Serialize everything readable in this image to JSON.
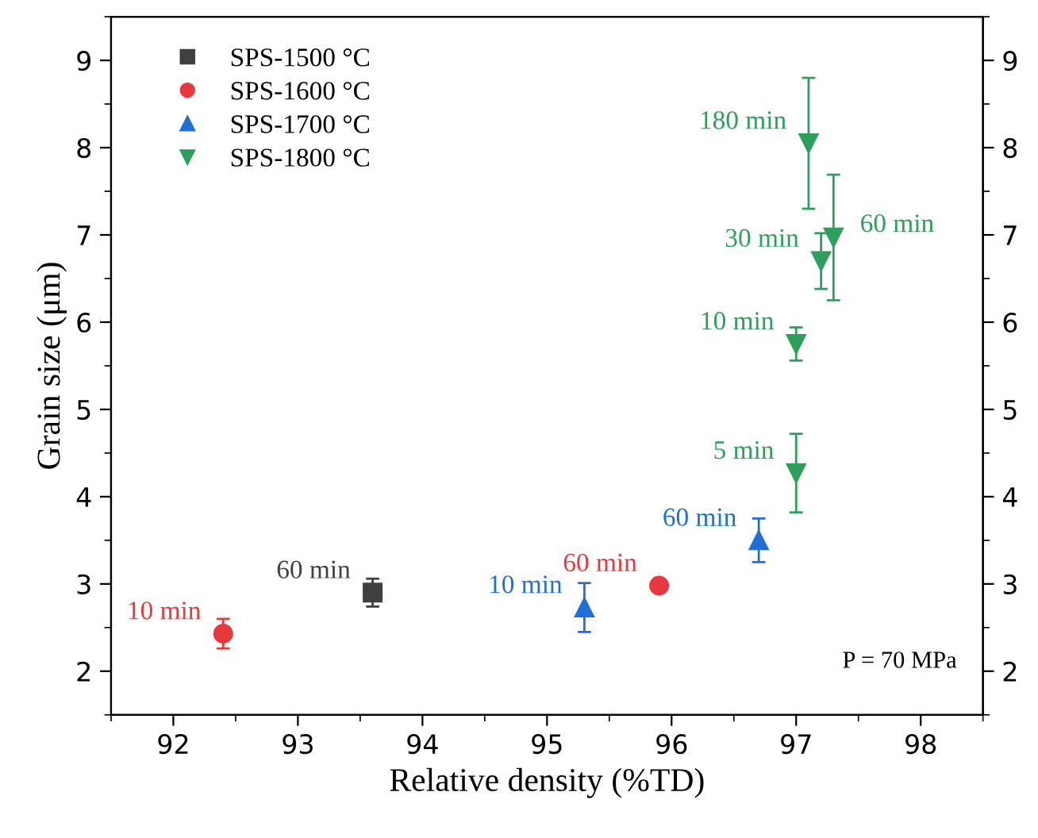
{
  "chart_data": {
    "type": "scatter",
    "xlabel": "Relative density (%TD)",
    "ylabel": "Grain size (μm)",
    "xlim": [
      91.5,
      98.5
    ],
    "xticks": [
      92,
      93,
      94,
      95,
      96,
      97,
      98
    ],
    "ylim": [
      1.5,
      9.5
    ],
    "yticks": [
      2,
      3,
      4,
      5,
      6,
      7,
      8,
      9
    ],
    "y2lim": [
      1.5,
      9.5
    ],
    "y2ticks": [
      2,
      3,
      4,
      5,
      6,
      7,
      8,
      9
    ],
    "grid": false,
    "legend": "top left",
    "series": [
      {
        "name": "SPS-1500 °C",
        "color": "#404040",
        "marker": "square",
        "x": [
          93.6
        ],
        "values": [
          2.9
        ],
        "errors": [
          0.16
        ]
      },
      {
        "name": "SPS-1600 °C",
        "color": "#e8383d",
        "marker": "circle",
        "x": [
          92.4,
          95.9
        ],
        "values": [
          2.43,
          2.98
        ],
        "errors": [
          0.17,
          0.04
        ]
      },
      {
        "name": "SPS-1700 °C",
        "color": "#1f6fd6",
        "marker": "triangle",
        "x": [
          95.3,
          96.7
        ],
        "values": [
          2.73,
          3.5
        ],
        "errors": [
          0.28,
          0.25
        ]
      },
      {
        "name": "SPS-1800 °C",
        "color": "#2ca05a",
        "marker": "triangle_down",
        "x": [
          97.0,
          97.0,
          97.2,
          97.3,
          97.1
        ],
        "values": [
          4.27,
          5.75,
          6.7,
          6.97,
          8.05
        ],
        "errors": [
          0.45,
          0.19,
          0.32,
          0.72,
          0.75
        ]
      }
    ],
    "annotations": [
      {
        "text": "60 min",
        "x": 93.6,
        "y": 2.9
      },
      {
        "text": "10 min",
        "x": 92.4,
        "y": 2.43
      },
      {
        "text": "60 min",
        "x": 95.9,
        "y": 2.98
      },
      {
        "text": "10 min",
        "x": 95.3,
        "y": 2.73
      },
      {
        "text": "60 min",
        "x": 96.7,
        "y": 3.5
      },
      {
        "text": "5 min",
        "x": 97.0,
        "y": 4.27
      },
      {
        "text": "10 min",
        "x": 97.0,
        "y": 5.75
      },
      {
        "text": "30 min",
        "x": 97.2,
        "y": 6.7
      },
      {
        "text": "60 min",
        "x": 97.3,
        "y": 6.97
      },
      {
        "text": "180 min",
        "x": 97.1,
        "y": 8.05
      },
      "P = 70 MPa"
    ]
  }
}
